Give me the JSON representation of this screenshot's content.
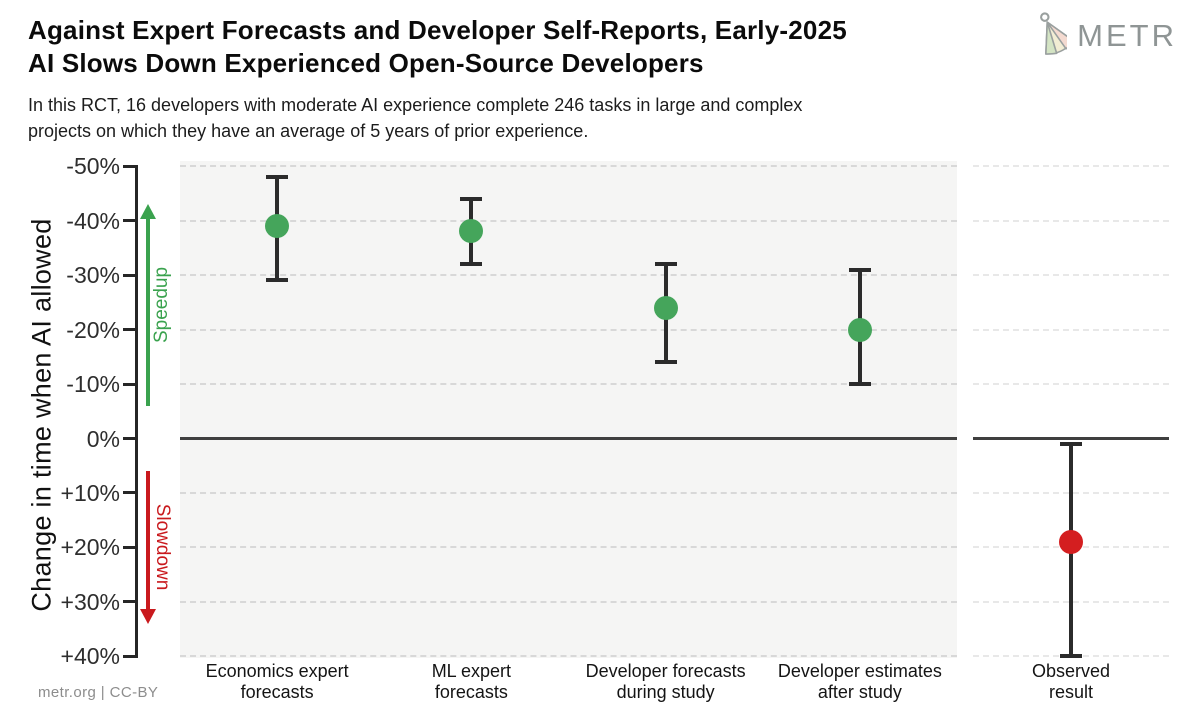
{
  "header": {
    "title_lines": [
      "Against Expert Forecasts and Developer Self-Reports, Early-2025",
      "AI Slows Down Experienced Open-Source Developers"
    ],
    "subtitle_lines": [
      "In this RCT, 16 developers with moderate AI experience complete 246 tasks in large and complex",
      "projects on which they have an average of 5 years of prior experience."
    ],
    "logo_text": "METR"
  },
  "footer": {
    "credit": "metr.org  |  CC-BY"
  },
  "chart_data": {
    "type": "scatter",
    "title": "Against Expert Forecasts and Developer Self-Reports, Early-2025 AI Slows Down Experienced Open-Source Developers",
    "ylabel": "Change in time when AI allowed",
    "unit": "percent change in task completion time (negative = speedup)",
    "ylim": [
      -51,
      41
    ],
    "grid": "dashed horizontal every 10%",
    "zero_line": 0,
    "legend_position": "none",
    "y_ticks": [
      {
        "v": -50,
        "label": "-50%"
      },
      {
        "v": -40,
        "label": "-40%"
      },
      {
        "v": -30,
        "label": "-30%"
      },
      {
        "v": -20,
        "label": "-20%"
      },
      {
        "v": -10,
        "label": "-10%"
      },
      {
        "v": 0,
        "label": "0%"
      },
      {
        "v": 10,
        "label": "+10%"
      },
      {
        "v": 20,
        "label": "+20%"
      },
      {
        "v": 30,
        "label": "+30%"
      },
      {
        "v": 40,
        "label": "+40%"
      }
    ],
    "direction_annotations": [
      {
        "label": "Speedup",
        "direction": "up",
        "color": "#3aa24e",
        "range": [
          -43,
          -6
        ]
      },
      {
        "label": "Slowdown",
        "direction": "down",
        "color": "#c9191d",
        "range": [
          6,
          34
        ]
      }
    ],
    "categories": [
      "Economics expert forecasts",
      "ML expert forecasts",
      "Developer forecasts during study",
      "Developer estimates after study",
      "Observed result"
    ],
    "points": [
      {
        "category": "Economics expert forecasts",
        "label_lines": [
          "Economics expert",
          "forecasts"
        ],
        "value": -39,
        "ci_low": -48,
        "ci_high": -29,
        "panel": "main",
        "color": "#45a55b"
      },
      {
        "category": "ML expert forecasts",
        "label_lines": [
          "ML expert",
          "forecasts"
        ],
        "value": -38,
        "ci_low": -44,
        "ci_high": -32,
        "panel": "main",
        "color": "#45a55b"
      },
      {
        "category": "Developer forecasts during study",
        "label_lines": [
          "Developer forecasts",
          "during study"
        ],
        "value": -24,
        "ci_low": -32,
        "ci_high": -14,
        "panel": "main",
        "color": "#45a55b"
      },
      {
        "category": "Developer estimates after study",
        "label_lines": [
          "Developer estimates",
          "after study"
        ],
        "value": -20,
        "ci_low": -31,
        "ci_high": -10,
        "panel": "main",
        "color": "#45a55b"
      },
      {
        "category": "Observed result",
        "label_lines": [
          "Observed",
          "result"
        ],
        "value": 19,
        "ci_low": 1,
        "ci_high": 40,
        "panel": "right",
        "color": "#d41e20"
      }
    ]
  }
}
